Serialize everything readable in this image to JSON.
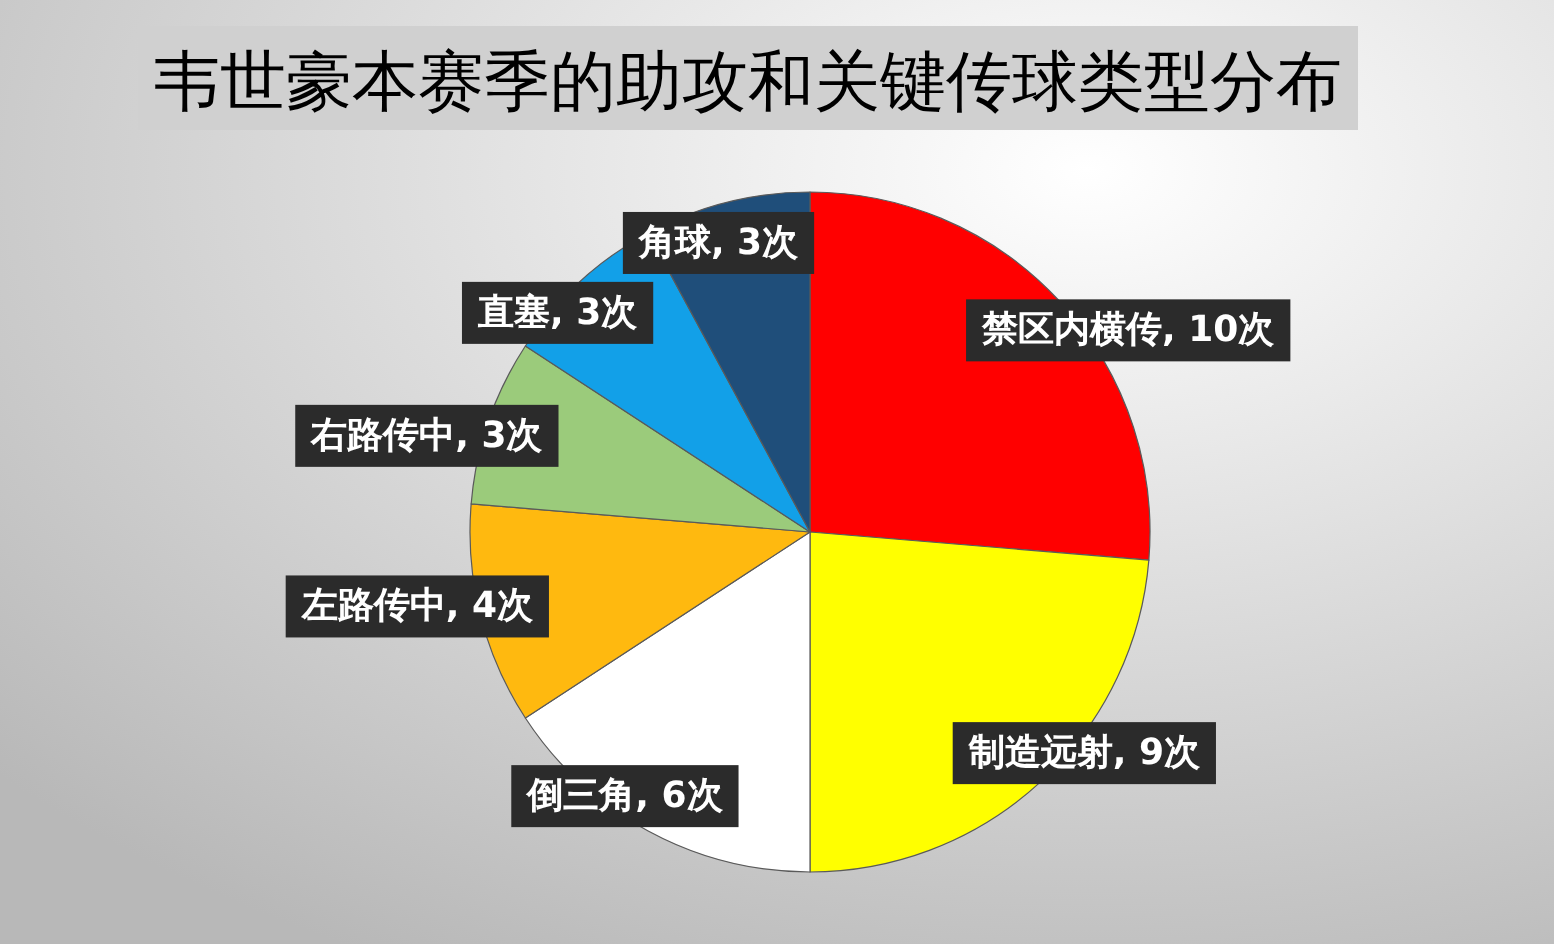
{
  "chart_data": {
    "type": "pie",
    "title": "韦世豪本赛季的助攻和关键传球类型分布",
    "categories": [
      "禁区内横传",
      "制造远射",
      "倒三角",
      "左路传中",
      "右路传中",
      "直塞",
      "角球"
    ],
    "values": [
      10,
      9,
      6,
      4,
      3,
      3,
      3
    ],
    "colors": [
      "#ff0000",
      "#ffff00",
      "#ffffff",
      "#ffb90f",
      "#9bcb7b",
      "#12a0e8",
      "#1f4e7a"
    ],
    "value_labels": [
      "10次",
      "9次",
      "6次",
      "4次",
      "3次",
      "3次",
      "3次"
    ]
  }
}
